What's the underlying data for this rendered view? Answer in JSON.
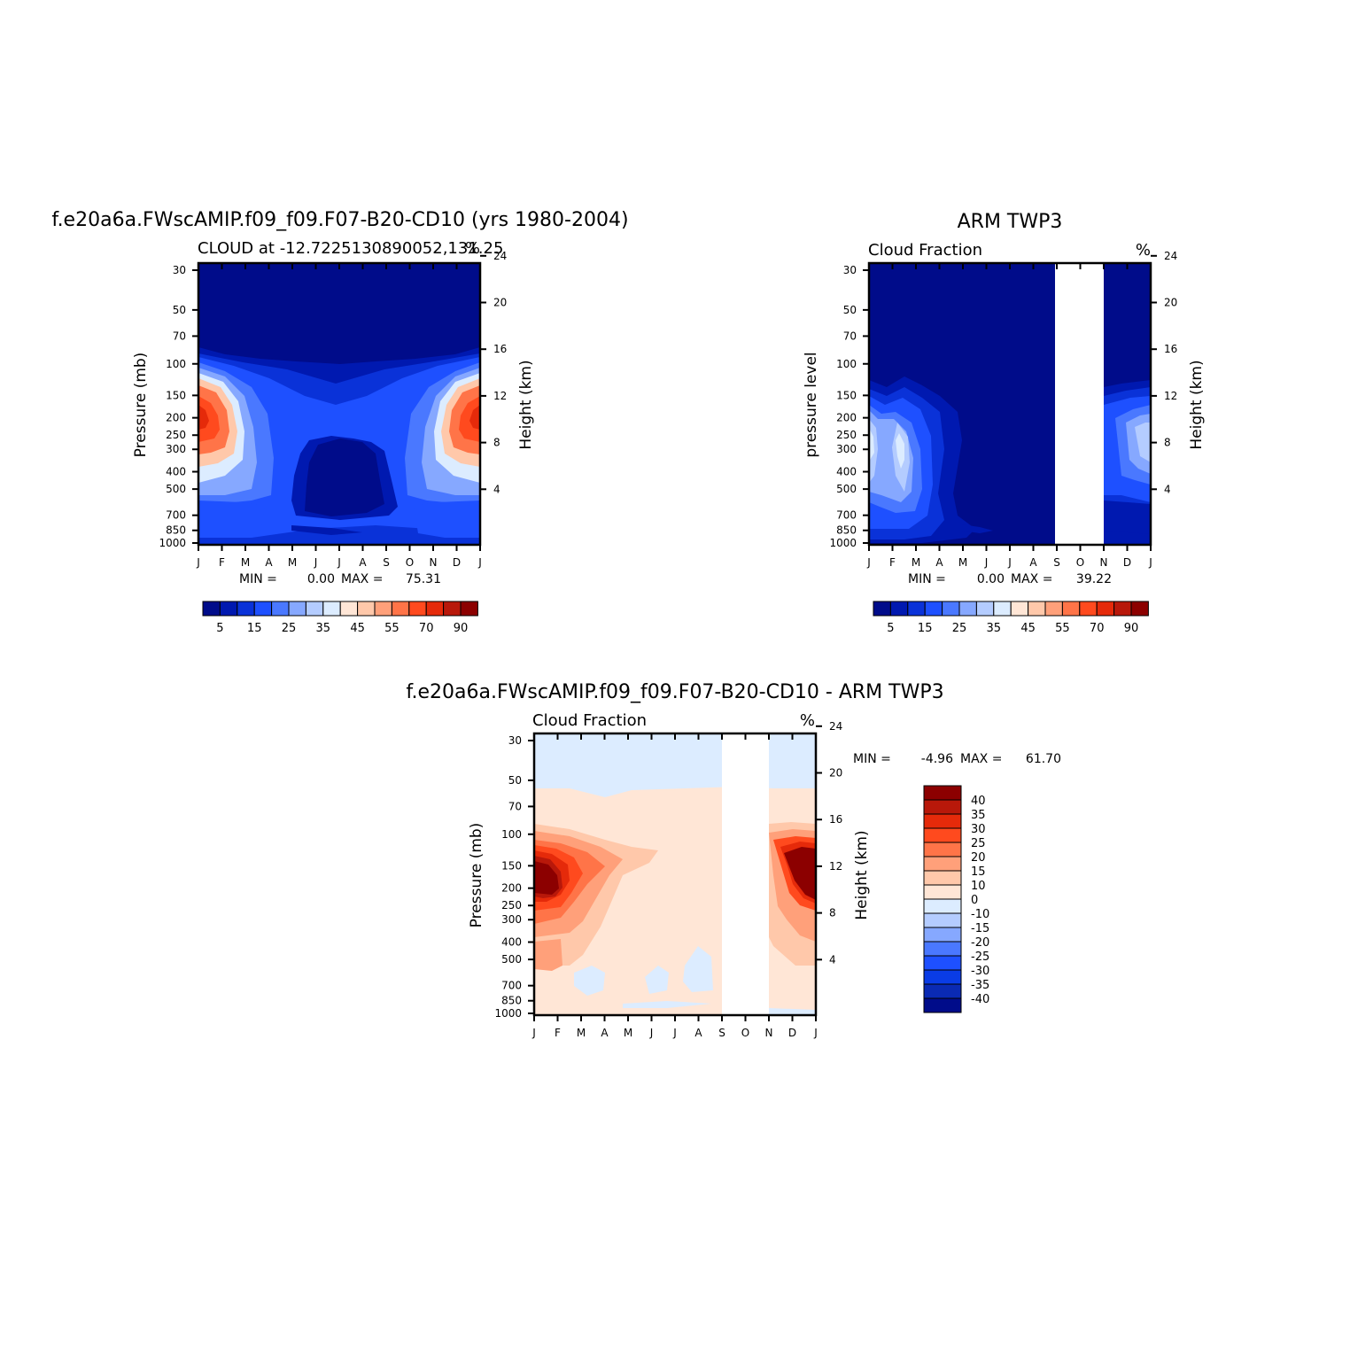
{
  "colors": {
    "nonneg": [
      "#000c8a",
      "#0019b0",
      "#0a32d8",
      "#1e50ff",
      "#4a78ff",
      "#86a8ff",
      "#b4ccff",
      "#dcecff",
      "#ffe6d6",
      "#ffc8aa",
      "#ffa07a",
      "#ff7448",
      "#ff4a1e",
      "#e52a0a",
      "#b8180a",
      "#8c0000"
    ],
    "diff": [
      "#000c8a",
      "#0a2ab4",
      "#0a3ce6",
      "#1e50ff",
      "#4a78ff",
      "#86a8ff",
      "#b4ccff",
      "#dcecff",
      "#ffe6d6",
      "#ffc8aa",
      "#ffa07a",
      "#ff7448",
      "#ff4a1e",
      "#e52a0a",
      "#b8180a",
      "#8c0000"
    ],
    "missing": "#ffffff"
  },
  "chart_data": [
    {
      "type": "heatmap",
      "panel": "model",
      "title": "f.e20a6a.FWscAMIP.f09_f09.F07-B20-CD10 (yrs 1980-2004)",
      "subtitle_left": "CLOUD at -12.7225130890052,131.25",
      "subtitle_right": "%",
      "ylabel": "Pressure (mb)",
      "ylabel_right": "Height (km)",
      "xticks": [
        "J",
        "F",
        "M",
        "A",
        "M",
        "J",
        "J",
        "A",
        "S",
        "O",
        "N",
        "D",
        "J"
      ],
      "yticks": [
        30,
        50,
        70,
        100,
        150,
        200,
        250,
        300,
        400,
        500,
        700,
        850,
        1000
      ],
      "yticks_right": [
        24,
        20,
        16,
        12,
        8,
        4
      ],
      "min_label": "MIN =",
      "min_value": "0.00",
      "max_label": "MAX =",
      "max_value": "75.31",
      "colorbar_labels": [
        "5",
        "15",
        "25",
        "35",
        "45",
        "55",
        "70",
        "90"
      ],
      "levels": [
        0,
        5,
        10,
        15,
        20,
        25,
        30,
        35,
        40,
        45,
        50,
        55,
        60,
        70,
        80,
        90
      ],
      "missing_months": []
    },
    {
      "type": "heatmap",
      "panel": "obs",
      "title": "ARM TWP3",
      "subtitle_left": "Cloud Fraction",
      "subtitle_right": "%",
      "ylabel": "pressure level",
      "ylabel_right": "Height (km)",
      "xticks": [
        "J",
        "F",
        "M",
        "A",
        "M",
        "J",
        "J",
        "A",
        "S",
        "O",
        "N",
        "D",
        "J"
      ],
      "yticks": [
        30,
        50,
        70,
        100,
        150,
        200,
        250,
        300,
        400,
        500,
        700,
        850,
        1000
      ],
      "yticks_right": [
        24,
        20,
        16,
        12,
        8,
        4
      ],
      "min_label": "MIN =",
      "min_value": "0.00",
      "max_label": "MAX =",
      "max_value": "39.22",
      "colorbar_labels": [
        "5",
        "15",
        "25",
        "35",
        "45",
        "55",
        "70",
        "90"
      ],
      "levels": [
        0,
        5,
        10,
        15,
        20,
        25,
        30,
        35,
        40,
        45,
        50,
        55,
        60,
        70,
        80,
        90
      ],
      "missing_months": [
        "Sep",
        "Oct"
      ]
    },
    {
      "type": "heatmap",
      "panel": "diff",
      "title": "f.e20a6a.FWscAMIP.f09_f09.F07-B20-CD10 - ARM TWP3",
      "subtitle_left": "Cloud Fraction",
      "subtitle_right": "%",
      "ylabel": "Pressure (mb)",
      "ylabel_right": "Height (km)",
      "xticks": [
        "J",
        "F",
        "M",
        "A",
        "M",
        "J",
        "J",
        "A",
        "S",
        "O",
        "N",
        "D",
        "J"
      ],
      "yticks": [
        30,
        50,
        70,
        100,
        150,
        200,
        250,
        300,
        400,
        500,
        700,
        850,
        1000
      ],
      "yticks_right": [
        24,
        20,
        16,
        12,
        8,
        4
      ],
      "min_label": "MIN =",
      "min_value": "-4.96",
      "max_label": "MAX =",
      "max_value": "61.70",
      "colorbar_labels": [
        "40",
        "35",
        "30",
        "25",
        "20",
        "15",
        "10",
        "0",
        "-10",
        "-15",
        "-20",
        "-25",
        "-30",
        "-35",
        "-40"
      ],
      "levels": [
        -40,
        -35,
        -30,
        -25,
        -20,
        -15,
        -10,
        0,
        10,
        15,
        20,
        25,
        30,
        35,
        40
      ],
      "missing_months": [
        "Sep",
        "Oct"
      ]
    }
  ]
}
